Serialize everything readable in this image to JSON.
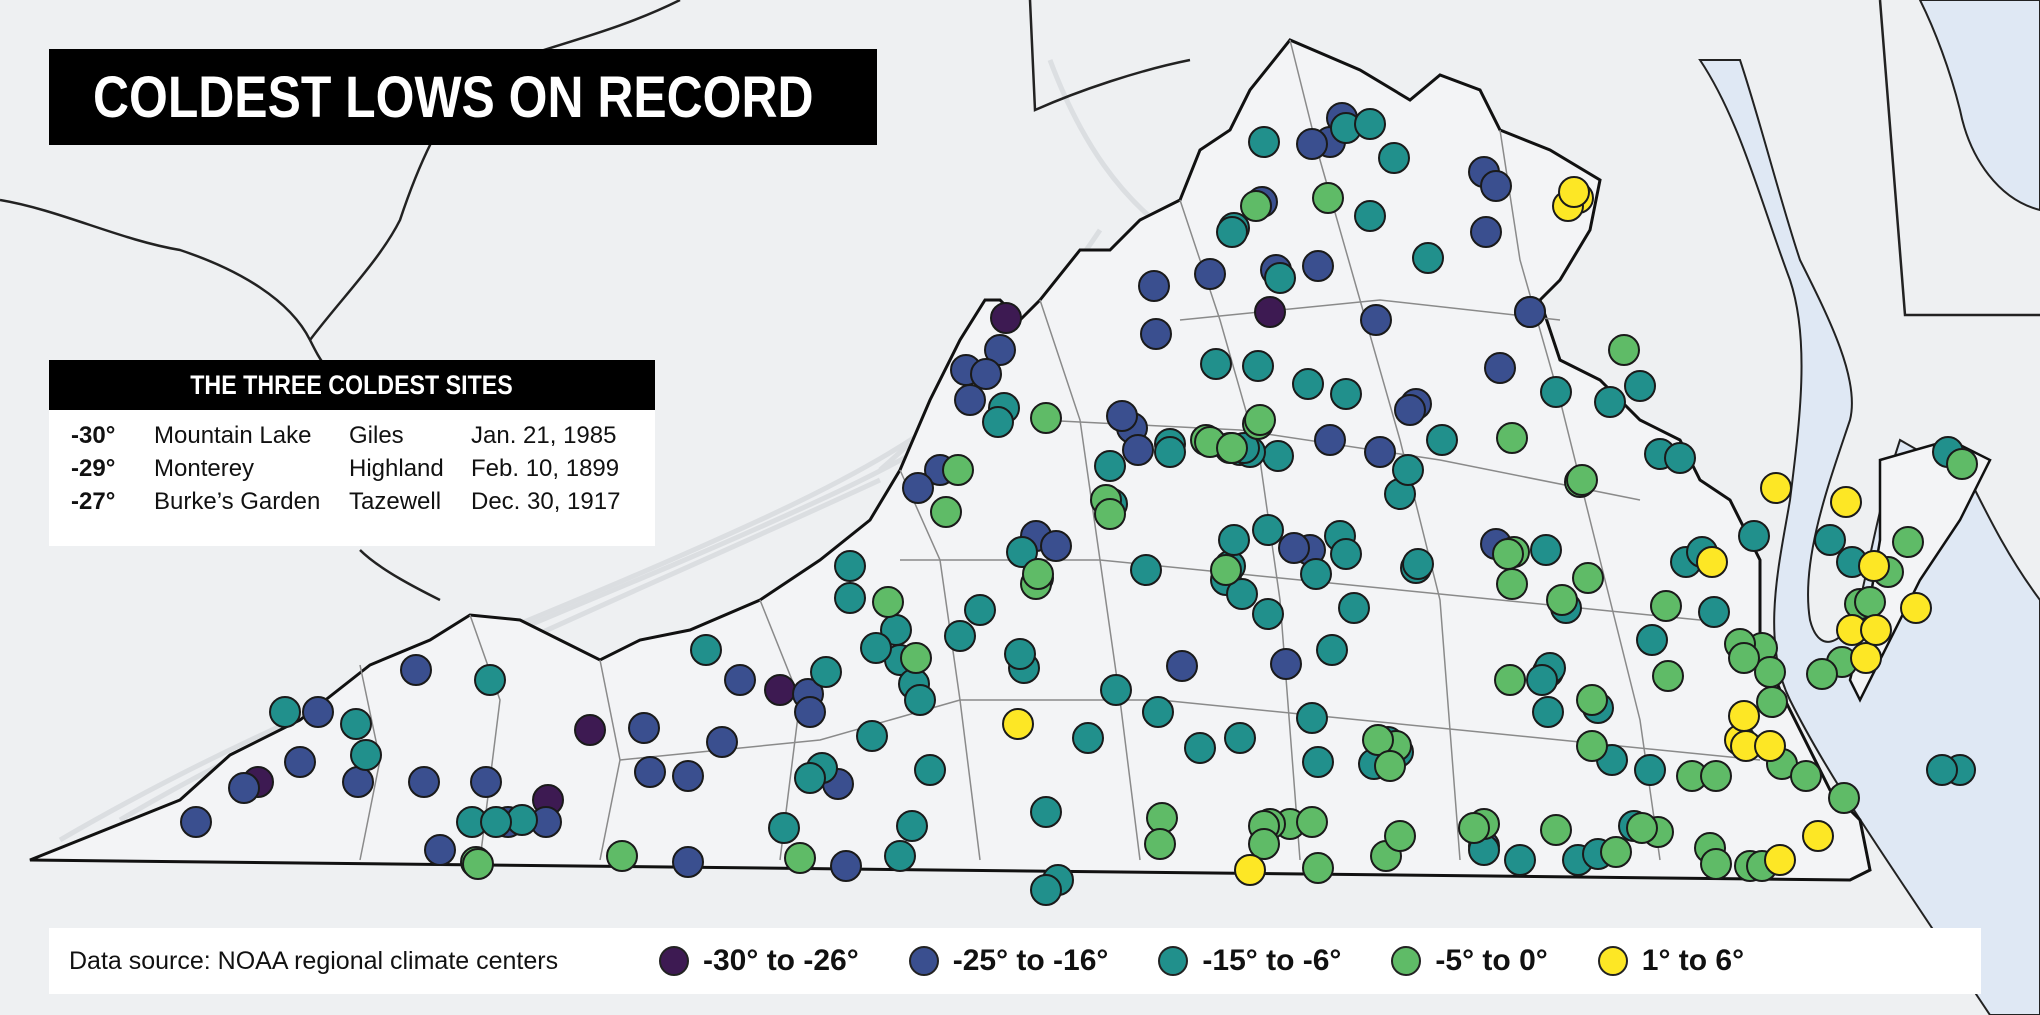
{
  "title": "COLDEST LOWS ON RECORD",
  "coldest_sites": {
    "heading": "THE THREE COLDEST SITES",
    "rows": [
      {
        "temp": "-30°",
        "site": "Mountain Lake",
        "county": "Giles",
        "date": "Jan. 21, 1985"
      },
      {
        "temp": "-29°",
        "site": "Monterey",
        "county": "Highland",
        "date": "Feb. 10, 1899"
      },
      {
        "temp": "-27°",
        "site": "Burke’s Garden",
        "county": "Tazewell",
        "date": "Dec. 30, 1917"
      }
    ]
  },
  "legend": {
    "source": "Data source: NOAA regional climate centers",
    "bins": [
      {
        "label": "-30° to -26°",
        "color": "#3d1a52"
      },
      {
        "label": "-25° to -16°",
        "color": "#3a4f8f"
      },
      {
        "label": "-15° to -6°",
        "color": "#21908c"
      },
      {
        "label": "-5° to 0°",
        "color": "#5fbb67"
      },
      {
        "label": "1° to 6°",
        "color": "#fde725"
      }
    ]
  },
  "colors": {
    "background": "#eef0f2",
    "water": "#dfe8f4",
    "state_border": "#111111",
    "county_line": "#8a8a8a"
  }
}
